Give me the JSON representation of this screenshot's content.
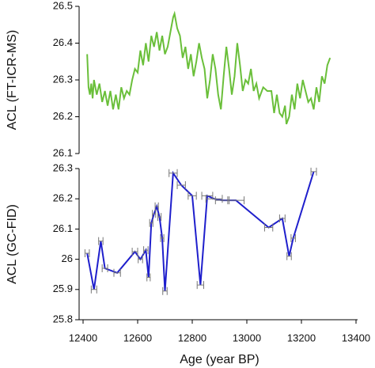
{
  "chart_data": [
    {
      "type": "line",
      "ylabel": "ACL (FT-ICR-MS)",
      "color": "#6abf3a",
      "xlim": [
        12400,
        13400
      ],
      "ylim": [
        26.1,
        26.5
      ],
      "yticks": [
        26.1,
        26.2,
        26.3,
        26.4,
        26.5
      ],
      "x": [
        12415,
        12420,
        12425,
        12430,
        12435,
        12440,
        12450,
        12460,
        12470,
        12480,
        12490,
        12500,
        12510,
        12520,
        12530,
        12540,
        12550,
        12560,
        12570,
        12580,
        12590,
        12600,
        12610,
        12620,
        12630,
        12640,
        12650,
        12660,
        12670,
        12680,
        12690,
        12700,
        12710,
        12720,
        12730,
        12735,
        12745,
        12755,
        12765,
        12775,
        12785,
        12795,
        12805,
        12815,
        12825,
        12835,
        12845,
        12855,
        12865,
        12875,
        12885,
        12895,
        12905,
        12915,
        12925,
        12935,
        12945,
        12955,
        12965,
        12975,
        12985,
        12995,
        13005,
        13015,
        13025,
        13035,
        13045,
        13060,
        13075,
        13090,
        13100,
        13110,
        13120,
        13130,
        13140,
        13145,
        13155,
        13165,
        13175,
        13185,
        13195,
        13205,
        13215,
        13225,
        13235,
        13245,
        13255,
        13265,
        13275,
        13285,
        13295,
        13305
      ],
      "values": [
        26.37,
        26.28,
        26.26,
        26.29,
        26.25,
        26.3,
        26.26,
        26.29,
        26.24,
        26.27,
        26.23,
        26.27,
        26.22,
        26.26,
        26.22,
        26.28,
        26.25,
        26.27,
        26.26,
        26.3,
        26.33,
        26.32,
        26.38,
        26.34,
        26.4,
        26.35,
        26.42,
        26.39,
        26.43,
        26.38,
        26.42,
        26.37,
        26.39,
        26.43,
        26.47,
        26.48,
        26.44,
        26.42,
        26.36,
        26.39,
        26.33,
        26.37,
        26.31,
        26.35,
        26.4,
        26.36,
        26.33,
        26.25,
        26.3,
        26.37,
        26.33,
        26.26,
        26.22,
        26.31,
        26.39,
        26.33,
        26.26,
        26.31,
        26.4,
        26.34,
        26.27,
        26.3,
        26.29,
        26.33,
        26.27,
        26.29,
        26.25,
        26.28,
        26.27,
        26.27,
        26.21,
        26.26,
        26.21,
        26.2,
        26.23,
        26.18,
        26.2,
        26.26,
        26.22,
        26.29,
        26.25,
        26.3,
        26.27,
        26.24,
        26.25,
        26.22,
        26.28,
        26.24,
        26.31,
        26.29,
        26.34,
        26.36
      ]
    },
    {
      "type": "errorline",
      "ylabel": "ACL (GC-FID)",
      "xlabel": "Age (year BP)",
      "color": "#1f1fcc",
      "error_color": "#777777",
      "xlim": [
        12400,
        13400
      ],
      "xticks": [
        12400,
        12600,
        12800,
        13000,
        13200,
        13400
      ],
      "ylim": [
        25.8,
        26.3
      ],
      "yticks": [
        25.8,
        25.9,
        26,
        26.1,
        26.2,
        26.3
      ],
      "x": [
        12415,
        12440,
        12465,
        12480,
        12525,
        12590,
        12610,
        12630,
        12640,
        12650,
        12660,
        12670,
        12680,
        12690,
        12700,
        12730,
        12760,
        12800,
        12830,
        12855,
        12880,
        12910,
        12960,
        13080,
        13130,
        13155,
        13170,
        13245
      ],
      "values": [
        26.02,
        25.9,
        26.06,
        25.97,
        25.955,
        26.025,
        26.0,
        26.03,
        25.94,
        26.12,
        26.15,
        26.175,
        26.14,
        26.07,
        25.895,
        26.285,
        26.245,
        26.21,
        25.915,
        26.21,
        26.2,
        26.195,
        26.195,
        26.105,
        26.135,
        26.01,
        26.07,
        26.29
      ],
      "x_errors": [
        8,
        10,
        8,
        10,
        12,
        10,
        8,
        8,
        6,
        6,
        6,
        6,
        6,
        6,
        8,
        15,
        15,
        15,
        12,
        20,
        30,
        25,
        30,
        15,
        10,
        8,
        8,
        10
      ]
    }
  ]
}
